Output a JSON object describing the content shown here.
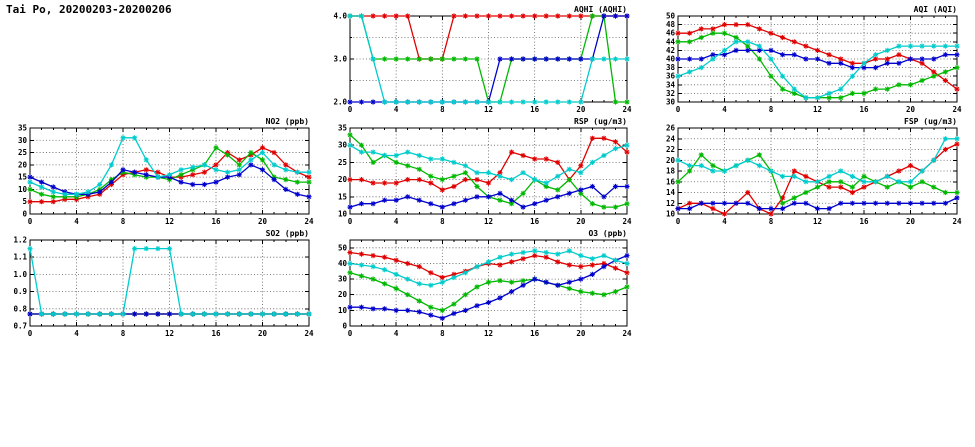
{
  "header": {
    "title": "Tai Po, 20200203-20200206"
  },
  "palette": {
    "red": "#e00000",
    "green": "#00b800",
    "blue": "#0000cc",
    "cyan": "#00cccc"
  },
  "chart_data": [
    {
      "id": "aqhi",
      "type": "line",
      "title": "AQHI (AQHI)",
      "xlim": [
        0,
        24
      ],
      "xticks": [
        0,
        4,
        8,
        12,
        16,
        20,
        24
      ],
      "ylim": [
        2,
        4
      ],
      "ytick_vals": [
        2,
        2.5,
        3,
        3.5,
        4
      ],
      "ytick_labels": [
        "2.0",
        "",
        "3.0",
        "",
        "4.0"
      ],
      "x_step": 1,
      "series": [
        {
          "name": "red",
          "color": "red",
          "values": [
            4,
            4,
            4,
            4,
            4,
            4,
            3,
            3,
            3,
            4,
            4,
            4,
            4,
            4,
            4,
            4,
            4,
            4,
            4,
            4,
            4,
            4,
            4,
            4,
            4
          ]
        },
        {
          "name": "green",
          "color": "green",
          "values": [
            4,
            4,
            3,
            3,
            3,
            3,
            3,
            3,
            3,
            3,
            3,
            3,
            2,
            2,
            3,
            3,
            3,
            3,
            3,
            3,
            3,
            4,
            4,
            2,
            2
          ]
        },
        {
          "name": "blue",
          "color": "blue",
          "values": [
            2,
            2,
            2,
            2,
            2,
            2,
            2,
            2,
            2,
            2,
            2,
            2,
            2,
            3,
            3,
            3,
            3,
            3,
            3,
            3,
            3,
            3,
            4,
            4,
            4
          ]
        },
        {
          "name": "cyan",
          "color": "cyan",
          "values": [
            4,
            4,
            3,
            2,
            2,
            2,
            2,
            2,
            2,
            2,
            2,
            2,
            2,
            2,
            2,
            2,
            2,
            2,
            2,
            2,
            2,
            3,
            3,
            3,
            3
          ]
        }
      ]
    },
    {
      "id": "aqi",
      "type": "line",
      "title": "AQI (AQI)",
      "xlim": [
        0,
        24
      ],
      "xticks": [
        0,
        4,
        8,
        12,
        16,
        20,
        24
      ],
      "ylim": [
        30,
        50
      ],
      "ytick_vals": [
        30,
        32,
        34,
        36,
        38,
        40,
        42,
        44,
        46,
        48,
        50
      ],
      "ytick_labels": [
        "30",
        "32",
        "34",
        "36",
        "38",
        "40",
        "42",
        "44",
        "46",
        "48",
        "50"
      ],
      "x_step": 1,
      "series": [
        {
          "name": "red",
          "color": "red",
          "values": [
            46,
            46,
            47,
            47,
            48,
            48,
            48,
            47,
            46,
            45,
            44,
            43,
            42,
            41,
            40,
            39,
            39,
            40,
            40,
            41,
            40,
            39,
            37,
            35,
            33
          ]
        },
        {
          "name": "green",
          "color": "green",
          "values": [
            44,
            44,
            45,
            46,
            46,
            45,
            43,
            40,
            36,
            33,
            32,
            31,
            31,
            31,
            31,
            32,
            32,
            33,
            33,
            34,
            34,
            35,
            36,
            37,
            38
          ]
        },
        {
          "name": "blue",
          "color": "blue",
          "values": [
            40,
            40,
            40,
            41,
            41,
            42,
            42,
            42,
            42,
            41,
            41,
            40,
            40,
            39,
            39,
            38,
            38,
            38,
            39,
            39,
            40,
            40,
            40,
            41,
            41
          ]
        },
        {
          "name": "cyan",
          "color": "cyan",
          "values": [
            36,
            37,
            38,
            40,
            42,
            44,
            44,
            43,
            40,
            36,
            33,
            31,
            31,
            32,
            33,
            36,
            39,
            41,
            42,
            43,
            43,
            43,
            43,
            43,
            43
          ]
        }
      ]
    },
    {
      "id": "no2",
      "type": "line",
      "title": "NO2 (ppb)",
      "xlim": [
        0,
        24
      ],
      "xticks": [
        0,
        4,
        8,
        12,
        16,
        20,
        24
      ],
      "ylim": [
        0,
        35
      ],
      "ytick_vals": [
        0,
        5,
        10,
        15,
        20,
        25,
        30,
        35
      ],
      "ytick_labels": [
        "0",
        "5",
        "10",
        "15",
        "20",
        "25",
        "30",
        "35"
      ],
      "x_step": 1,
      "series": [
        {
          "name": "red",
          "color": "red",
          "values": [
            5,
            5,
            5,
            6,
            6,
            7,
            8,
            12,
            16,
            17,
            18,
            17,
            15,
            15,
            16,
            17,
            20,
            25,
            22,
            24,
            27,
            25,
            20,
            17,
            15
          ]
        },
        {
          "name": "green",
          "color": "green",
          "values": [
            10,
            8,
            7,
            7,
            7,
            8,
            10,
            14,
            17,
            16,
            15,
            15,
            14,
            16,
            18,
            20,
            27,
            24,
            20,
            25,
            22,
            15,
            14,
            13,
            13
          ]
        },
        {
          "name": "blue",
          "color": "blue",
          "values": [
            15,
            13,
            11,
            9,
            8,
            8,
            9,
            13,
            18,
            17,
            16,
            15,
            15,
            13,
            12,
            12,
            13,
            15,
            16,
            20,
            18,
            14,
            10,
            8,
            7
          ]
        },
        {
          "name": "cyan",
          "color": "cyan",
          "values": [
            13,
            11,
            9,
            8,
            8,
            9,
            12,
            20,
            31,
            31,
            22,
            15,
            16,
            18,
            19,
            20,
            18,
            17,
            18,
            22,
            25,
            20,
            18,
            17,
            17
          ]
        }
      ]
    },
    {
      "id": "rsp",
      "type": "line",
      "title": "RSP (ug/m3)",
      "xlim": [
        0,
        24
      ],
      "xticks": [
        0,
        4,
        8,
        12,
        16,
        20,
        24
      ],
      "ylim": [
        10,
        35
      ],
      "ytick_vals": [
        10,
        15,
        20,
        25,
        30,
        35
      ],
      "ytick_labels": [
        "10",
        "15",
        "20",
        "25",
        "30",
        "35"
      ],
      "x_step": 1,
      "series": [
        {
          "name": "red",
          "color": "red",
          "values": [
            20,
            20,
            19,
            19,
            19,
            20,
            20,
            19,
            17,
            18,
            20,
            20,
            19,
            22,
            28,
            27,
            26,
            26,
            25,
            20,
            24,
            32,
            32,
            31,
            28
          ]
        },
        {
          "name": "green",
          "color": "green",
          "values": [
            33,
            30,
            25,
            27,
            25,
            24,
            23,
            21,
            20,
            21,
            22,
            18,
            15,
            14,
            13,
            16,
            20,
            18,
            17,
            20,
            16,
            13,
            12,
            12,
            13
          ]
        },
        {
          "name": "blue",
          "color": "blue",
          "values": [
            12,
            13,
            13,
            14,
            14,
            15,
            14,
            13,
            12,
            13,
            14,
            15,
            15,
            16,
            14,
            12,
            13,
            14,
            15,
            16,
            17,
            18,
            15,
            18,
            18
          ]
        },
        {
          "name": "cyan",
          "color": "cyan",
          "values": [
            30,
            28,
            28,
            27,
            27,
            28,
            27,
            26,
            26,
            25,
            24,
            22,
            22,
            21,
            20,
            22,
            20,
            19,
            21,
            23,
            22,
            25,
            27,
            29,
            30
          ]
        }
      ]
    },
    {
      "id": "fsp",
      "type": "line",
      "title": "FSP (ug/m3)",
      "xlim": [
        0,
        24
      ],
      "xticks": [
        0,
        4,
        8,
        12,
        16,
        20,
        24
      ],
      "ylim": [
        10,
        26
      ],
      "ytick_vals": [
        10,
        12,
        14,
        16,
        18,
        20,
        22,
        24,
        26
      ],
      "ytick_labels": [
        "10",
        "12",
        "14",
        "16",
        "18",
        "20",
        "22",
        "24",
        "26"
      ],
      "x_step": 1,
      "series": [
        {
          "name": "red",
          "color": "red",
          "values": [
            11,
            12,
            12,
            11,
            10,
            12,
            14,
            11,
            10,
            13,
            18,
            17,
            16,
            15,
            15,
            14,
            15,
            16,
            17,
            18,
            19,
            18,
            20,
            22,
            23
          ]
        },
        {
          "name": "green",
          "color": "green",
          "values": [
            16,
            18,
            21,
            19,
            18,
            19,
            20,
            21,
            18,
            12,
            13,
            14,
            15,
            16,
            16,
            15,
            17,
            16,
            15,
            16,
            15,
            16,
            15,
            14,
            14
          ]
        },
        {
          "name": "blue",
          "color": "blue",
          "values": [
            11,
            11,
            12,
            12,
            12,
            12,
            12,
            11,
            11,
            11,
            12,
            12,
            11,
            11,
            12,
            12,
            12,
            12,
            12,
            12,
            12,
            12,
            12,
            12,
            13
          ]
        },
        {
          "name": "cyan",
          "color": "cyan",
          "values": [
            20,
            19,
            19,
            18,
            18,
            19,
            20,
            19,
            18,
            17,
            17,
            16,
            16,
            17,
            18,
            17,
            16,
            16,
            17,
            16,
            16,
            18,
            20,
            24,
            24
          ]
        }
      ]
    },
    {
      "id": "so2",
      "type": "line",
      "title": "SO2 (ppb)",
      "xlim": [
        0,
        24
      ],
      "xticks": [
        0,
        4,
        8,
        12,
        16,
        20,
        24
      ],
      "ylim": [
        0.7,
        1.2
      ],
      "ytick_vals": [
        0.7,
        0.8,
        0.9,
        1.0,
        1.1,
        1.2
      ],
      "ytick_labels": [
        "0.7",
        "0.8",
        "0.9",
        "1.0",
        "1.1",
        "1.2"
      ],
      "x_step": 1,
      "series": [
        {
          "name": "red",
          "color": "red",
          "values": [
            0.77,
            0.77,
            0.77,
            0.77,
            0.77,
            0.77,
            0.77,
            0.77,
            0.77,
            0.77,
            0.77,
            0.77,
            0.77,
            0.77,
            0.77,
            0.77,
            0.77,
            0.77,
            0.77,
            0.77,
            0.77,
            0.77,
            0.77,
            0.77,
            0.77
          ]
        },
        {
          "name": "green",
          "color": "green",
          "values": [
            0.77,
            0.77,
            0.77,
            0.77,
            0.77,
            0.77,
            0.77,
            0.77,
            0.77,
            0.77,
            0.77,
            0.77,
            0.77,
            0.77,
            0.77,
            0.77,
            0.77,
            0.77,
            0.77,
            0.77,
            0.77,
            0.77,
            0.77,
            0.77,
            0.77
          ]
        },
        {
          "name": "blue",
          "color": "blue",
          "values": [
            0.77,
            0.77,
            0.77,
            0.77,
            0.77,
            0.77,
            0.77,
            0.77,
            0.77,
            0.77,
            0.77,
            0.77,
            0.77,
            0.77,
            0.77,
            0.77,
            0.77,
            0.77,
            0.77,
            0.77,
            0.77,
            0.77,
            0.77,
            0.77,
            0.77
          ]
        },
        {
          "name": "cyan",
          "color": "cyan",
          "values": [
            1.15,
            0.77,
            0.77,
            0.77,
            0.77,
            0.77,
            0.77,
            0.77,
            0.77,
            1.15,
            1.15,
            1.15,
            1.15,
            0.77,
            0.77,
            0.77,
            0.77,
            0.77,
            0.77,
            0.77,
            0.77,
            0.77,
            0.77,
            0.77,
            0.77
          ]
        }
      ]
    },
    {
      "id": "o3",
      "type": "line",
      "title": "O3 (ppb)",
      "xlim": [
        0,
        24
      ],
      "xticks": [
        0,
        4,
        8,
        12,
        16,
        20,
        24
      ],
      "ylim": [
        0,
        55
      ],
      "ytick_vals": [
        0,
        10,
        20,
        30,
        40,
        50
      ],
      "ytick_labels": [
        "0",
        "10",
        "20",
        "30",
        "40",
        "50"
      ],
      "x_step": 1,
      "series": [
        {
          "name": "red",
          "color": "red",
          "values": [
            47,
            46,
            45,
            44,
            42,
            40,
            38,
            34,
            31,
            33,
            35,
            38,
            40,
            39,
            41,
            43,
            45,
            44,
            41,
            39,
            38,
            39,
            40,
            37,
            34
          ]
        },
        {
          "name": "green",
          "color": "green",
          "values": [
            34,
            32,
            30,
            27,
            24,
            20,
            16,
            12,
            10,
            14,
            20,
            25,
            28,
            29,
            28,
            29,
            30,
            28,
            26,
            24,
            22,
            21,
            20,
            22,
            25
          ]
        },
        {
          "name": "blue",
          "color": "blue",
          "values": [
            12,
            12,
            11,
            11,
            10,
            10,
            9,
            7,
            5,
            8,
            10,
            13,
            15,
            18,
            22,
            26,
            30,
            28,
            26,
            28,
            30,
            33,
            38,
            42,
            45
          ]
        },
        {
          "name": "cyan",
          "color": "cyan",
          "values": [
            40,
            39,
            38,
            36,
            33,
            30,
            27,
            26,
            28,
            31,
            34,
            38,
            41,
            44,
            46,
            47,
            48,
            47,
            46,
            48,
            45,
            43,
            45,
            42,
            40
          ]
        }
      ]
    }
  ]
}
